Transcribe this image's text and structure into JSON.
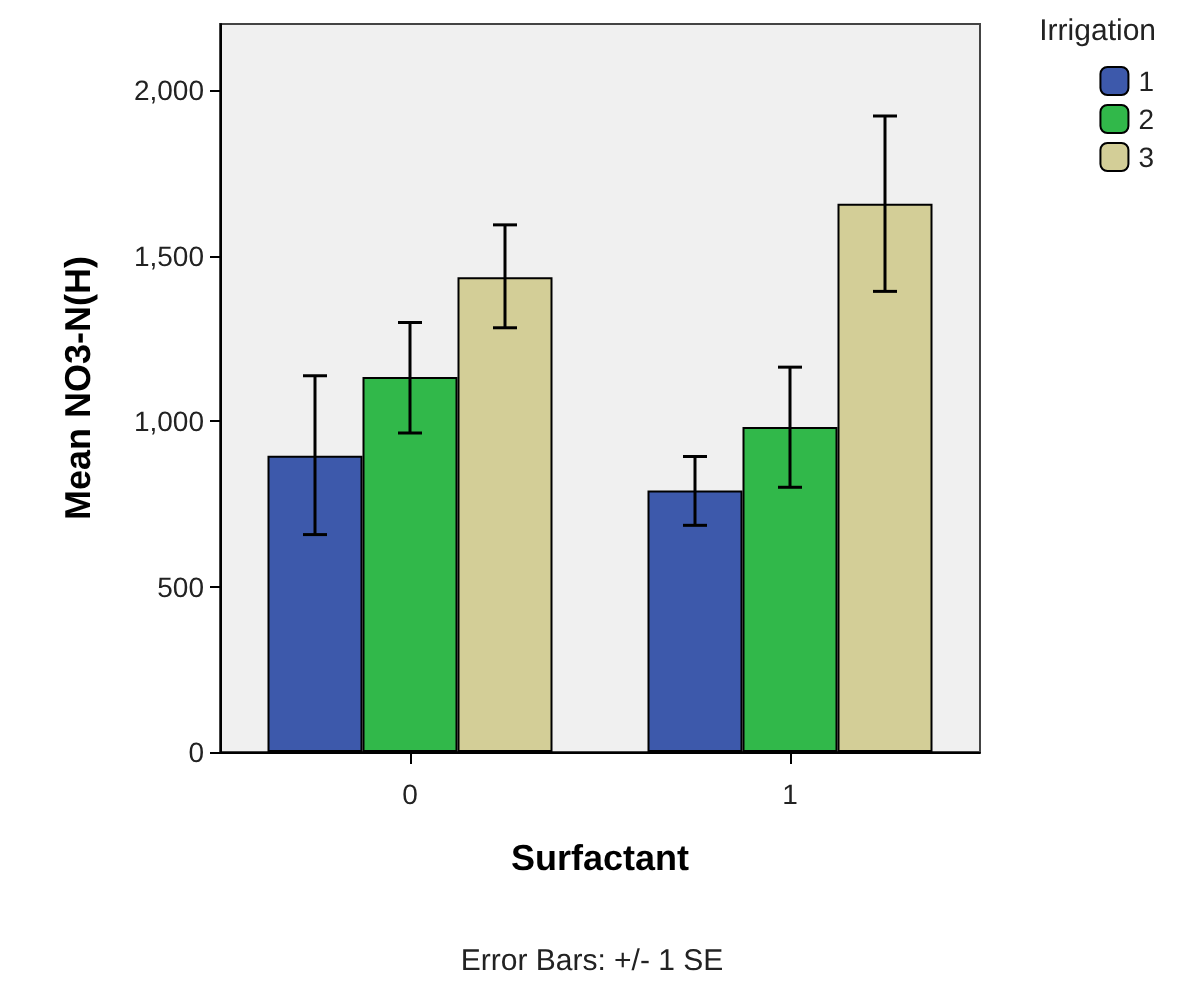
{
  "chart_data": {
    "type": "bar",
    "xlabel": "Surfactant",
    "ylabel": "Mean NO3-N(H)",
    "legend_title": "Irrigation",
    "categories": [
      "0",
      "1"
    ],
    "series": [
      {
        "name": "1",
        "color": "#3d59ab",
        "values": [
          895,
          790
        ],
        "errors": [
          [
            657,
            1137
          ],
          [
            685,
            893
          ]
        ]
      },
      {
        "name": "2",
        "color": "#31b84a",
        "values": [
          1133,
          982
        ],
        "errors": [
          [
            964,
            1298
          ],
          [
            800,
            1163
          ]
        ]
      },
      {
        "name": "3",
        "color": "#d3ce97",
        "values": [
          1435,
          1657
        ],
        "errors": [
          [
            1282,
            1593
          ],
          [
            1392,
            1922
          ]
        ]
      }
    ],
    "ylim": [
      0,
      2200
    ],
    "yticks": [
      {
        "value": 0,
        "label": "0"
      },
      {
        "value": 500,
        "label": "500"
      },
      {
        "value": 1000,
        "label": "1,000"
      },
      {
        "value": 1500,
        "label": "1,500"
      },
      {
        "value": 2000,
        "label": "2,000"
      }
    ],
    "grid": false,
    "legend": "top right",
    "annotations": [
      "Error Bars: +/- 1 SE"
    ]
  }
}
